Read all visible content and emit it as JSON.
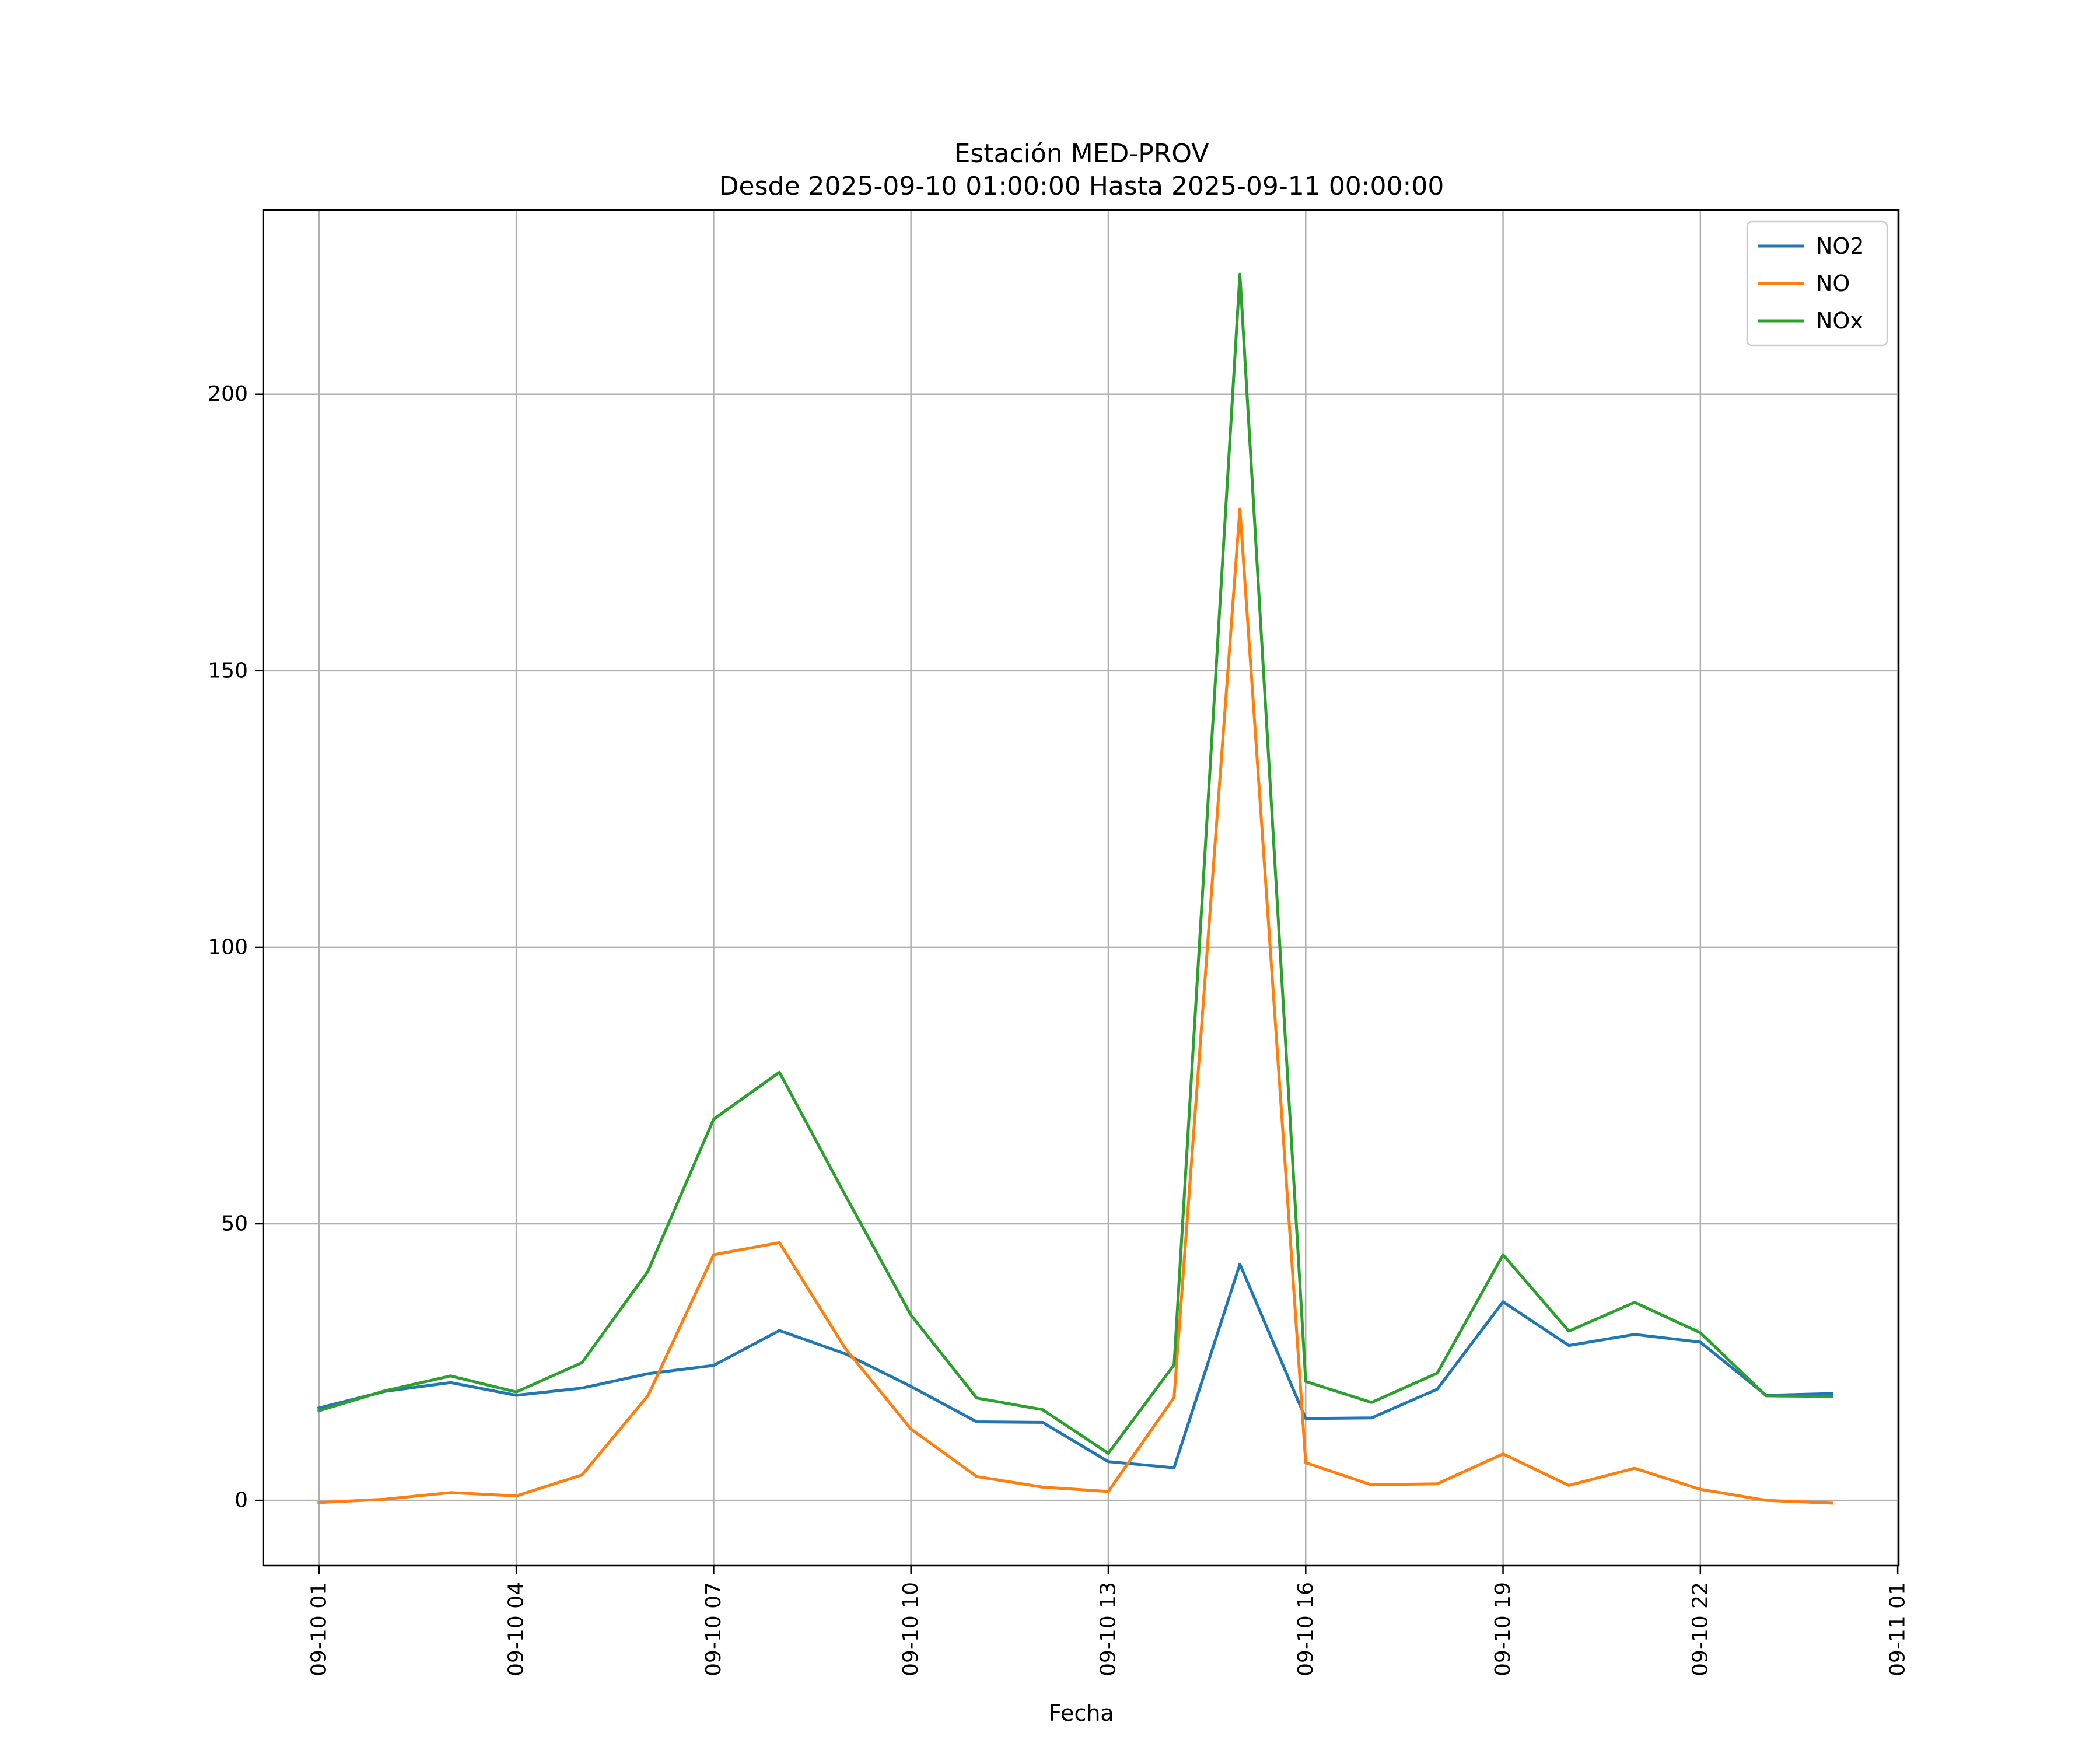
{
  "chart_data": {
    "type": "line",
    "title": "Estación MED-PROV",
    "subtitle": "Desde 2025-09-10 01:00:00 Hasta 2025-09-11 00:00:00",
    "xlabel": "Fecha",
    "ylabel": "",
    "x": [
      "2025-09-10 01:00",
      "2025-09-10 02:00",
      "2025-09-10 03:00",
      "2025-09-10 04:00",
      "2025-09-10 05:00",
      "2025-09-10 06:00",
      "2025-09-10 07:00",
      "2025-09-10 08:00",
      "2025-09-10 09:00",
      "2025-09-10 10:00",
      "2025-09-10 11:00",
      "2025-09-10 12:00",
      "2025-09-10 13:00",
      "2025-09-10 14:00",
      "2025-09-10 15:00",
      "2025-09-10 16:00",
      "2025-09-10 17:00",
      "2025-09-10 18:00",
      "2025-09-10 19:00",
      "2025-09-10 20:00",
      "2025-09-10 21:00",
      "2025-09-10 22:00",
      "2025-09-10 23:00",
      "2025-09-11 00:00"
    ],
    "series": [
      {
        "name": "NO2",
        "color": "#1f77b4",
        "values": [
          16.7,
          19.7,
          21.3,
          19.0,
          20.3,
          22.9,
          24.4,
          30.7,
          26.5,
          20.6,
          14.2,
          14.1,
          7.0,
          5.9,
          42.7,
          14.8,
          14.9,
          20.1,
          35.9,
          28.0,
          30.0,
          28.6,
          19.0,
          19.3
        ]
      },
      {
        "name": "NO",
        "color": "#ff7f0e",
        "values": [
          -0.4,
          0.2,
          1.4,
          0.8,
          4.6,
          18.9,
          44.4,
          46.6,
          27.5,
          12.9,
          4.3,
          2.4,
          1.6,
          18.6,
          179.3,
          6.8,
          2.8,
          3.0,
          8.4,
          2.7,
          5.8,
          2.0,
          0.0,
          -0.5
        ]
      },
      {
        "name": "NOx",
        "color": "#2ca02c",
        "values": [
          16.2,
          19.8,
          22.5,
          19.6,
          24.9,
          41.4,
          68.9,
          77.4,
          55.2,
          33.5,
          18.5,
          16.4,
          8.5,
          24.5,
          221.7,
          21.5,
          17.7,
          23.0,
          44.4,
          30.6,
          35.8,
          30.3,
          18.9,
          18.8
        ]
      }
    ],
    "xticks": [
      "09-10 01",
      "09-10 04",
      "09-10 07",
      "09-10 10",
      "09-10 13",
      "09-10 16",
      "09-10 19",
      "09-10 22",
      "09-11 01"
    ],
    "yticks": [
      0,
      50,
      100,
      150,
      200
    ],
    "ylim": [
      -11.8,
      233.3
    ],
    "xlim": [
      "2025-09-10 00:09",
      "2025-09-11 01:01"
    ],
    "grid": true,
    "legend": "top-right"
  }
}
